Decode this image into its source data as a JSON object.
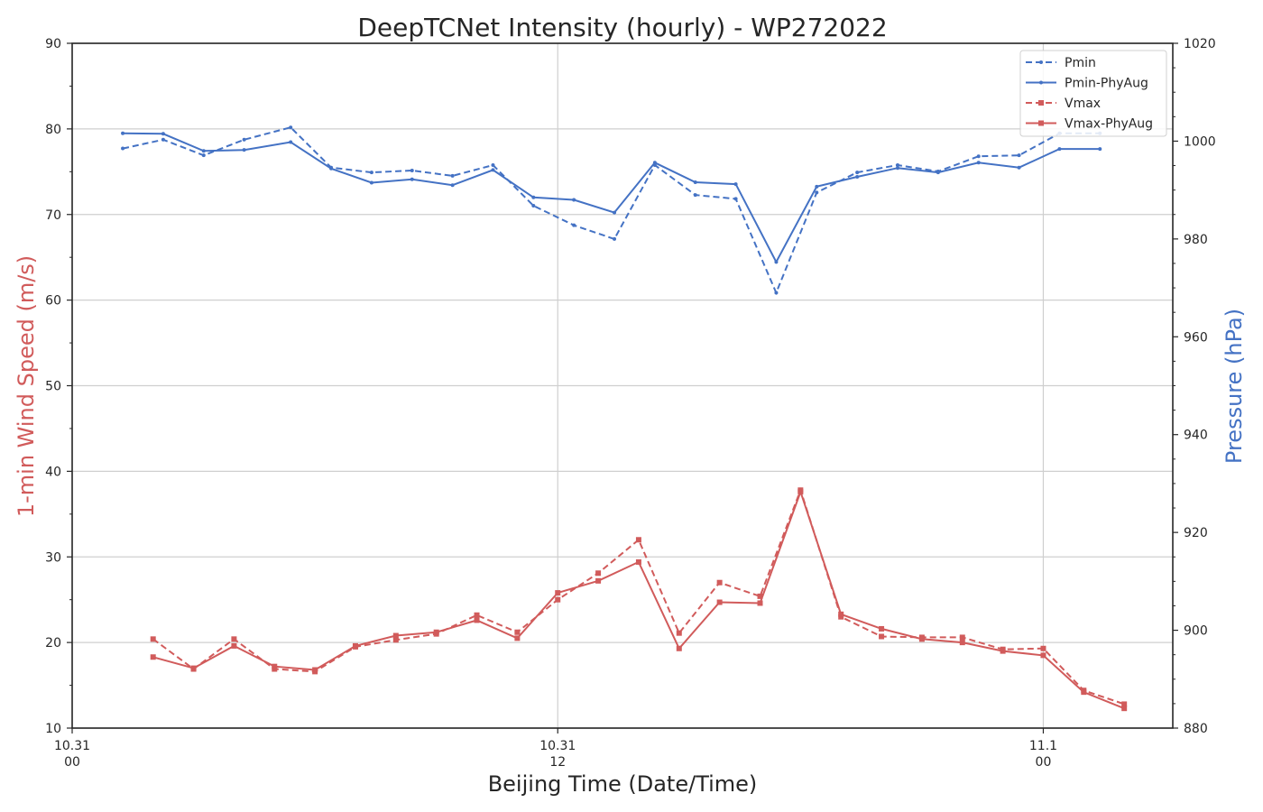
{
  "chart_data": {
    "type": "line",
    "title": "DeepTCNet Intensity (hourly) - WP272022",
    "xlabel": "Beijing Time (Date/Time)",
    "ylabel_left": "1-min Wind Speed (m/s)",
    "ylabel_right": "Pressure (hPa)",
    "ylim_left": [
      10,
      90
    ],
    "ylim_right": [
      880,
      1020
    ],
    "xlim_hours": [
      0,
      27.2
    ],
    "grid": true,
    "legend_position": "top-right",
    "x_ticks": [
      {
        "hour": 0,
        "line1": "10.31",
        "line2": "00"
      },
      {
        "hour": 12,
        "line1": "10.31",
        "line2": "12"
      },
      {
        "hour": 24,
        "line1": "11.1",
        "line2": "00"
      }
    ],
    "y_ticks_left": [
      10,
      20,
      30,
      40,
      50,
      60,
      70,
      80,
      90
    ],
    "y_ticks_right": [
      880,
      900,
      920,
      940,
      960,
      980,
      1000,
      1020
    ],
    "colors": {
      "blue": "#4472c4",
      "red": "#d15b5b",
      "grid": "#cfcfcf",
      "axis": "#262626"
    },
    "series": [
      {
        "name": "Pmin",
        "axis": "right",
        "color": "#4472c4",
        "dash": true,
        "x": [
          1.25,
          2.25,
          3.25,
          4.25,
          5.4,
          6.4,
          7.4,
          8.4,
          9.4,
          10.4,
          11.4,
          12.4,
          13.4,
          14.4,
          15.4,
          16.4,
          17.4,
          18.4,
          19.4,
          20.4,
          21.4,
          22.4,
          23.4,
          24.4
        ],
        "values": [
          998.5,
          1000.3,
          997.1,
          1000.3,
          1002.8,
          994.6,
          993.6,
          994.0,
          992.9,
          995.1,
          986.8,
          982.8,
          980.0,
          995.1,
          989.0,
          988.2,
          969.0,
          989.5,
          993.6,
          995.1,
          993.8,
          996.9,
          997.1,
          1001.6
        ],
        "x_extra": [
          25.4
        ],
        "values_extra": [
          1001.6
        ]
      },
      {
        "name": "Pmin-PhyAug",
        "axis": "right",
        "color": "#4472c4",
        "dash": false,
        "x": [
          1.25,
          2.25,
          3.25,
          4.25,
          5.4,
          6.4,
          7.4,
          8.4,
          9.4,
          10.4,
          11.4,
          12.4,
          13.4,
          14.4,
          15.4,
          16.4,
          17.4,
          18.4,
          19.4,
          20.4,
          21.4,
          22.4,
          23.4,
          24.4
        ],
        "values": [
          1001.6,
          1001.5,
          998.0,
          998.2,
          999.8,
          994.4,
          991.5,
          992.2,
          991.0,
          994.1,
          988.5,
          988.0,
          985.4,
          995.6,
          991.6,
          991.2,
          975.3,
          990.7,
          992.7,
          994.5,
          993.6,
          995.6,
          994.6,
          998.4
        ],
        "x_extra": [
          25.4
        ],
        "values_extra": [
          998.4
        ]
      },
      {
        "name": "Vmax",
        "axis": "left",
        "color": "#d15b5b",
        "dash": true,
        "x": [
          2.0,
          3.0,
          4.0,
          5.0,
          6.0,
          7.0,
          8.0,
          9.0,
          10.0,
          11.0,
          12.0,
          13.0,
          14.0,
          15.0,
          16.0,
          17.0,
          18.0,
          19.0,
          20.0,
          21.0,
          22.0,
          23.0,
          24.0,
          25.0,
          26.0
        ],
        "values": [
          20.4,
          16.9,
          20.4,
          16.9,
          16.6,
          19.5,
          20.3,
          21.0,
          23.2,
          21.2,
          25.0,
          28.1,
          32.0,
          21.1,
          27.0,
          25.4,
          37.8,
          23.0,
          20.7,
          20.6,
          20.6,
          19.2,
          19.3,
          14.4,
          12.8
        ]
      },
      {
        "name": "Vmax-PhyAug",
        "axis": "left",
        "color": "#d15b5b",
        "dash": false,
        "x": [
          2.0,
          3.0,
          4.0,
          5.0,
          6.0,
          7.0,
          8.0,
          9.0,
          10.0,
          11.0,
          12.0,
          13.0,
          14.0,
          15.0,
          16.0,
          17.0,
          18.0,
          19.0,
          20.0,
          21.0,
          22.0,
          23.0,
          24.0,
          25.0,
          26.0
        ],
        "values": [
          18.3,
          17.0,
          19.6,
          17.2,
          16.8,
          19.6,
          20.8,
          21.2,
          22.6,
          20.5,
          25.8,
          27.2,
          29.4,
          19.3,
          24.7,
          24.6,
          37.6,
          23.3,
          21.6,
          20.4,
          20.0,
          19.0,
          18.5,
          14.2,
          12.3
        ]
      }
    ]
  }
}
